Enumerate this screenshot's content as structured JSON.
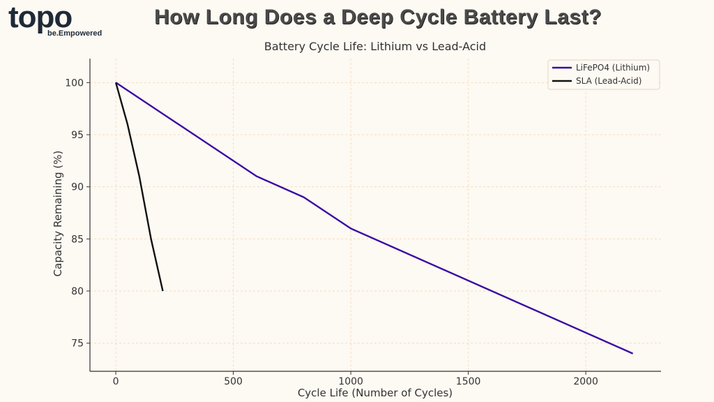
{
  "logo": {
    "word": "topo",
    "tagline": "be.Empowered"
  },
  "headline": "How Long Does a Deep Cycle Battery Last?",
  "colors": {
    "background": "#fdf9f3",
    "grid": "#f3dfc0",
    "lithium": "#3a0ca3",
    "lead_acid": "#111111"
  },
  "chart_data": {
    "type": "line",
    "title": "Battery Cycle Life: Lithium vs Lead-Acid",
    "xlabel": "Cycle Life (Number of Cycles)",
    "ylabel": "Capacity Remaining (%)",
    "xlim": [
      -110,
      2320
    ],
    "ylim": [
      72.3,
      102.3
    ],
    "xticks": [
      0,
      500,
      1000,
      1500,
      2000
    ],
    "yticks": [
      75,
      80,
      85,
      90,
      95,
      100
    ],
    "grid": true,
    "legend_position": "top-right",
    "series": [
      {
        "name": "LiFePO4 (Lithium)",
        "color": "#3a0ca3",
        "x": [
          0,
          600,
          800,
          1000,
          2200
        ],
        "y": [
          100,
          91,
          89,
          86,
          74
        ]
      },
      {
        "name": "SLA (Lead-Acid)",
        "color": "#111111",
        "x": [
          0,
          50,
          100,
          150,
          200
        ],
        "y": [
          100,
          96,
          91,
          85,
          80
        ]
      }
    ]
  }
}
